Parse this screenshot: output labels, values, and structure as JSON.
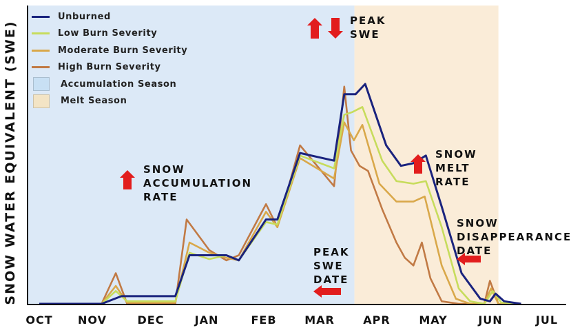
{
  "ylabel": "SNOW WATER EQUIVALENT (SWE)",
  "legend": [
    {
      "label": "Unburned",
      "color": "#1a237e",
      "kind": "line"
    },
    {
      "label": "Low Burn Severity",
      "color": "#c7dc5c",
      "kind": "line"
    },
    {
      "label": "Moderate Burn Severity",
      "color": "#d9a84a",
      "kind": "line"
    },
    {
      "label": "High Burn Severity",
      "color": "#c17a45",
      "kind": "line"
    },
    {
      "label": "Accumulation Season",
      "color": "#c8e0f4",
      "kind": "box"
    },
    {
      "label": "Melt Season",
      "color": "#f3e4c5",
      "kind": "box"
    }
  ],
  "annotations": {
    "peak_swe": "PEAK\nSWE",
    "snow_accumulation_rate": "SNOW\nACCUMULATION\nRATE",
    "snow_melt_rate": "SNOW\nMELT\nRATE",
    "snow_disappearance_date": "SNOW\nDISAPPEARANCE\nDATE",
    "peak_swe_date": "PEAK\nSWE\nDATE"
  },
  "colors": {
    "arrow": "#e21d1d",
    "accumulation": "#dce9f7",
    "melt": "#faecd8",
    "axis": "#111111"
  },
  "chart_data": {
    "type": "line",
    "xlabel": "",
    "ylabel": "SNOW WATER EQUIVALENT (SWE)",
    "ticks": [
      "OCT",
      "NOV",
      "DEC",
      "JAN",
      "FEB",
      "MAR",
      "APR",
      "MAY",
      "JUN",
      "JUL"
    ],
    "xlim": [
      0,
      9.3
    ],
    "ylim": [
      0,
      100
    ],
    "grid": false,
    "legend_position": "top-left",
    "seasons": [
      {
        "name": "Accumulation Season",
        "start": 0,
        "end": 5.56
      },
      {
        "name": "Melt Season",
        "start": 5.56,
        "end": 8.1
      }
    ],
    "series": [
      {
        "name": "Unburned",
        "color": "#1a237e",
        "points": [
          [
            0,
            0
          ],
          [
            1.1,
            0
          ],
          [
            1.45,
            3
          ],
          [
            2.4,
            3
          ],
          [
            2.65,
            19
          ],
          [
            3.3,
            19
          ],
          [
            3.52,
            17
          ],
          [
            4.0,
            33
          ],
          [
            4.2,
            33
          ],
          [
            4.6,
            59
          ],
          [
            5.2,
            56
          ],
          [
            5.38,
            82
          ],
          [
            5.58,
            82
          ],
          [
            5.75,
            86
          ],
          [
            6.12,
            62
          ],
          [
            6.38,
            54
          ],
          [
            6.6,
            55
          ],
          [
            6.82,
            58
          ],
          [
            7.1,
            38
          ],
          [
            7.45,
            12
          ],
          [
            7.78,
            2
          ],
          [
            7.95,
            1
          ],
          [
            8.05,
            4
          ],
          [
            8.2,
            1
          ],
          [
            8.5,
            0
          ]
        ]
      },
      {
        "name": "Low Burn Severity",
        "color": "#c7dc5c",
        "points": [
          [
            0,
            0
          ],
          [
            1.1,
            0
          ],
          [
            1.35,
            5
          ],
          [
            1.55,
            1
          ],
          [
            2.4,
            1
          ],
          [
            2.65,
            20
          ],
          [
            3.0,
            17.5
          ],
          [
            3.3,
            19
          ],
          [
            3.52,
            17
          ],
          [
            4.0,
            32
          ],
          [
            4.2,
            31
          ],
          [
            4.6,
            58
          ],
          [
            5.2,
            53
          ],
          [
            5.38,
            74
          ],
          [
            5.52,
            75
          ],
          [
            5.7,
            77
          ],
          [
            6.05,
            56
          ],
          [
            6.3,
            48
          ],
          [
            6.6,
            47
          ],
          [
            6.82,
            48
          ],
          [
            7.1,
            30
          ],
          [
            7.4,
            6
          ],
          [
            7.6,
            1
          ],
          [
            7.85,
            0
          ],
          [
            8.0,
            5
          ],
          [
            8.15,
            0.5
          ],
          [
            8.5,
            0
          ]
        ]
      },
      {
        "name": "Moderate Burn Severity",
        "color": "#d9a84a",
        "points": [
          [
            0,
            0
          ],
          [
            1.1,
            0
          ],
          [
            1.35,
            7
          ],
          [
            1.55,
            0.5
          ],
          [
            2.4,
            0.5
          ],
          [
            2.65,
            24
          ],
          [
            3.0,
            20
          ],
          [
            3.3,
            18
          ],
          [
            3.52,
            17
          ],
          [
            4.0,
            36
          ],
          [
            4.2,
            30
          ],
          [
            4.6,
            57
          ],
          [
            5.2,
            49
          ],
          [
            5.38,
            71
          ],
          [
            5.55,
            64
          ],
          [
            5.7,
            70
          ],
          [
            6.0,
            47
          ],
          [
            6.3,
            40
          ],
          [
            6.6,
            40
          ],
          [
            6.8,
            42
          ],
          [
            7.1,
            15
          ],
          [
            7.35,
            2
          ],
          [
            7.6,
            0
          ],
          [
            7.85,
            0
          ],
          [
            7.97,
            6
          ],
          [
            8.1,
            0
          ],
          [
            8.5,
            0
          ]
        ]
      },
      {
        "name": "High Burn Severity",
        "color": "#c17a45",
        "points": [
          [
            0,
            0
          ],
          [
            1.1,
            0
          ],
          [
            1.35,
            12
          ],
          [
            1.55,
            0
          ],
          [
            2.4,
            0
          ],
          [
            2.6,
            33
          ],
          [
            3.0,
            21
          ],
          [
            3.3,
            17
          ],
          [
            3.52,
            19
          ],
          [
            4.0,
            39
          ],
          [
            4.2,
            30
          ],
          [
            4.6,
            62
          ],
          [
            5.2,
            46
          ],
          [
            5.38,
            85
          ],
          [
            5.5,
            60
          ],
          [
            5.65,
            54
          ],
          [
            5.8,
            52
          ],
          [
            6.05,
            37
          ],
          [
            6.3,
            24
          ],
          [
            6.45,
            18
          ],
          [
            6.6,
            15
          ],
          [
            6.75,
            24
          ],
          [
            6.9,
            10
          ],
          [
            7.1,
            1
          ],
          [
            7.4,
            0
          ],
          [
            7.85,
            0
          ],
          [
            7.95,
            9
          ],
          [
            8.1,
            0
          ],
          [
            8.5,
            0
          ]
        ]
      }
    ]
  }
}
